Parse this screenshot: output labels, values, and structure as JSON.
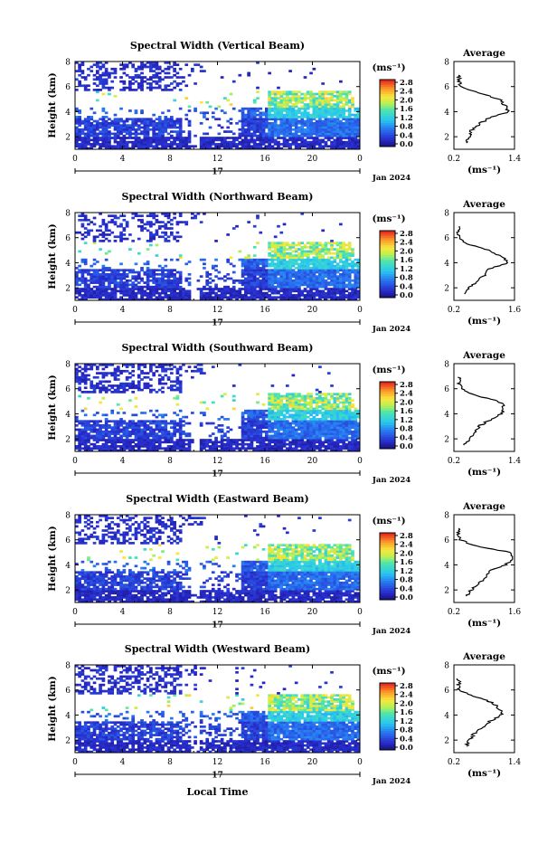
{
  "global": {
    "xlabel_bottom": "Local Time"
  },
  "panels": [
    {
      "title": "Spectral Width (Vertical Beam)",
      "ylabel": "Height (km)",
      "y_ticks": [
        "2",
        "4",
        "6",
        "8"
      ],
      "x_ticks": [
        "0",
        "4",
        "8",
        "12",
        "16",
        "20",
        "0"
      ],
      "date_day": "17",
      "date_label": "Jan 2024",
      "colorbar_unit": "(ms⁻¹)",
      "colorbar_ticks": [
        "0.0",
        "0.4",
        "0.8",
        "1.2",
        "1.6",
        "2.0",
        "2.4",
        "2.8"
      ],
      "avg_title": "Average",
      "avg_y_ticks": [
        "2",
        "4",
        "6",
        "8"
      ],
      "avg_x_ticks": [
        "0.2",
        "1.4"
      ],
      "avg_xlabel": "(ms⁻¹)"
    },
    {
      "title": "Spectral Width (Northward Beam)",
      "ylabel": "Height (km)",
      "y_ticks": [
        "2",
        "4",
        "6",
        "8"
      ],
      "x_ticks": [
        "0",
        "4",
        "8",
        "12",
        "16",
        "20",
        "0"
      ],
      "date_day": "17",
      "date_label": "Jan 2024",
      "colorbar_unit": "(ms⁻¹)",
      "colorbar_ticks": [
        "0.0",
        "0.4",
        "0.8",
        "1.2",
        "1.6",
        "2.0",
        "2.4",
        "2.8"
      ],
      "avg_title": "Average",
      "avg_y_ticks": [
        "2",
        "4",
        "6",
        "8"
      ],
      "avg_x_ticks": [
        "0.2",
        "1.6"
      ],
      "avg_xlabel": "(ms⁻¹)"
    },
    {
      "title": "Spectral Width (Southward Beam)",
      "ylabel": "Height (km)",
      "y_ticks": [
        "2",
        "4",
        "6",
        "8"
      ],
      "x_ticks": [
        "0",
        "4",
        "8",
        "12",
        "16",
        "20",
        "0"
      ],
      "date_day": "17",
      "date_label": "Jan 2024",
      "colorbar_unit": "(ms⁻¹)",
      "colorbar_ticks": [
        "0.0",
        "0.4",
        "0.8",
        "1.2",
        "1.6",
        "2.0",
        "2.4",
        "2.8"
      ],
      "avg_title": "Average",
      "avg_y_ticks": [
        "2",
        "4",
        "6",
        "8"
      ],
      "avg_x_ticks": [
        "0.2",
        "1.4"
      ],
      "avg_xlabel": "(ms⁻¹)"
    },
    {
      "title": "Spectral Width (Eastward Beam)",
      "ylabel": "Height (km)",
      "y_ticks": [
        "2",
        "4",
        "6",
        "8"
      ],
      "x_ticks": [
        "0",
        "4",
        "8",
        "12",
        "16",
        "20",
        "0"
      ],
      "date_day": "17",
      "date_label": "Jan 2024",
      "colorbar_unit": "(ms⁻¹)",
      "colorbar_ticks": [
        "0.0",
        "0.4",
        "0.8",
        "1.2",
        "1.6",
        "2.0",
        "2.4",
        "2.8"
      ],
      "avg_title": "Average",
      "avg_y_ticks": [
        "2",
        "4",
        "6",
        "8"
      ],
      "avg_x_ticks": [
        "0.2",
        "1.6"
      ],
      "avg_xlabel": "(ms⁻¹)"
    },
    {
      "title": "Spectral Width (Westward Beam)",
      "ylabel": "Height (km)",
      "y_ticks": [
        "2",
        "4",
        "6",
        "8"
      ],
      "x_ticks": [
        "0",
        "4",
        "8",
        "12",
        "16",
        "20",
        "0"
      ],
      "date_day": "17",
      "date_label": "Jan 2024",
      "colorbar_unit": "(ms⁻¹)",
      "colorbar_ticks": [
        "0.0",
        "0.4",
        "0.8",
        "1.2",
        "1.6",
        "2.0",
        "2.4",
        "2.8"
      ],
      "avg_title": "Average",
      "avg_y_ticks": [
        "2",
        "4",
        "6",
        "8"
      ],
      "avg_x_ticks": [
        "0.2",
        "1.4"
      ],
      "avg_xlabel": "(ms⁻¹)"
    }
  ],
  "chart_data": [
    {
      "type": "heatmap",
      "title": "Spectral Width (Vertical Beam)",
      "xlabel": "Local Time",
      "ylabel": "Height (km)",
      "xlim": [
        0,
        24
      ],
      "ylim": [
        1,
        8
      ],
      "colorbar": {
        "label": "(ms⁻¹)",
        "range": [
          0.0,
          2.8
        ]
      },
      "average_profile": {
        "title": "Average",
        "xlabel": "(ms⁻¹)",
        "xlim": [
          0.2,
          1.4
        ],
        "ylim": [
          1,
          8
        ],
        "height": [
          1.5,
          2.0,
          2.5,
          3.0,
          3.5,
          4.0,
          4.5,
          5.0,
          5.5,
          6.0,
          6.5,
          7.0
        ],
        "width": [
          0.45,
          0.5,
          0.55,
          0.7,
          0.9,
          1.3,
          1.2,
          1.1,
          0.7,
          0.35,
          0.3,
          0.3
        ]
      }
    },
    {
      "type": "heatmap",
      "title": "Spectral Width (Northward Beam)",
      "xlabel": "Local Time",
      "ylabel": "Height (km)",
      "xlim": [
        0,
        24
      ],
      "ylim": [
        1,
        8
      ],
      "colorbar": {
        "label": "(ms⁻¹)",
        "range": [
          0.0,
          2.8
        ]
      },
      "average_profile": {
        "title": "Average",
        "xlabel": "(ms⁻¹)",
        "xlim": [
          0.2,
          1.6
        ],
        "ylim": [
          1,
          8
        ],
        "height": [
          1.5,
          2.0,
          2.5,
          3.0,
          3.5,
          4.0,
          4.5,
          5.0,
          5.5,
          6.0,
          6.5,
          7.0
        ],
        "width": [
          0.45,
          0.55,
          0.75,
          0.9,
          1.0,
          1.45,
          1.3,
          1.0,
          0.5,
          0.3,
          0.3,
          0.3
        ]
      }
    },
    {
      "type": "heatmap",
      "title": "Spectral Width (Southward Beam)",
      "xlabel": "Local Time",
      "ylabel": "Height (km)",
      "xlim": [
        0,
        24
      ],
      "ylim": [
        1,
        8
      ],
      "colorbar": {
        "label": "(ms⁻¹)",
        "range": [
          0.0,
          2.8
        ]
      },
      "average_profile": {
        "title": "Average",
        "xlabel": "(ms⁻¹)",
        "xlim": [
          0.2,
          1.4
        ],
        "ylim": [
          1,
          8
        ],
        "height": [
          1.5,
          2.0,
          2.5,
          3.0,
          3.5,
          4.0,
          4.5,
          5.0,
          5.5,
          6.0,
          6.5,
          7.0
        ],
        "width": [
          0.4,
          0.5,
          0.6,
          0.7,
          0.9,
          1.15,
          1.2,
          1.1,
          0.6,
          0.35,
          0.3,
          0.3
        ]
      }
    },
    {
      "type": "heatmap",
      "title": "Spectral Width (Eastward Beam)",
      "xlabel": "Local Time",
      "ylabel": "Height (km)",
      "xlim": [
        0,
        24
      ],
      "ylim": [
        1,
        8
      ],
      "colorbar": {
        "label": "(ms⁻¹)",
        "range": [
          0.0,
          2.8
        ]
      },
      "average_profile": {
        "title": "Average",
        "xlabel": "(ms⁻¹)",
        "xlim": [
          0.2,
          1.6
        ],
        "ylim": [
          1,
          8
        ],
        "height": [
          1.5,
          2.0,
          2.5,
          3.0,
          3.5,
          4.0,
          4.5,
          5.0,
          5.5,
          6.0,
          6.5,
          7.0
        ],
        "width": [
          0.5,
          0.6,
          0.75,
          0.95,
          1.0,
          1.4,
          1.55,
          1.5,
          0.7,
          0.35,
          0.3,
          0.3
        ]
      }
    },
    {
      "type": "heatmap",
      "title": "Spectral Width (Westward Beam)",
      "xlabel": "Local Time",
      "ylabel": "Height (km)",
      "xlim": [
        0,
        24
      ],
      "ylim": [
        1,
        8
      ],
      "colorbar": {
        "label": "(ms⁻¹)",
        "range": [
          0.0,
          2.8
        ]
      },
      "average_profile": {
        "title": "Average",
        "xlabel": "(ms⁻¹)",
        "xlim": [
          0.2,
          1.4
        ],
        "ylim": [
          1,
          8
        ],
        "height": [
          1.5,
          2.0,
          2.5,
          3.0,
          3.5,
          4.0,
          4.5,
          5.0,
          5.5,
          6.0,
          6.5,
          7.0
        ],
        "width": [
          0.45,
          0.5,
          0.6,
          0.75,
          0.9,
          1.15,
          1.1,
          0.95,
          0.6,
          0.3,
          0.3,
          0.3
        ]
      }
    }
  ]
}
